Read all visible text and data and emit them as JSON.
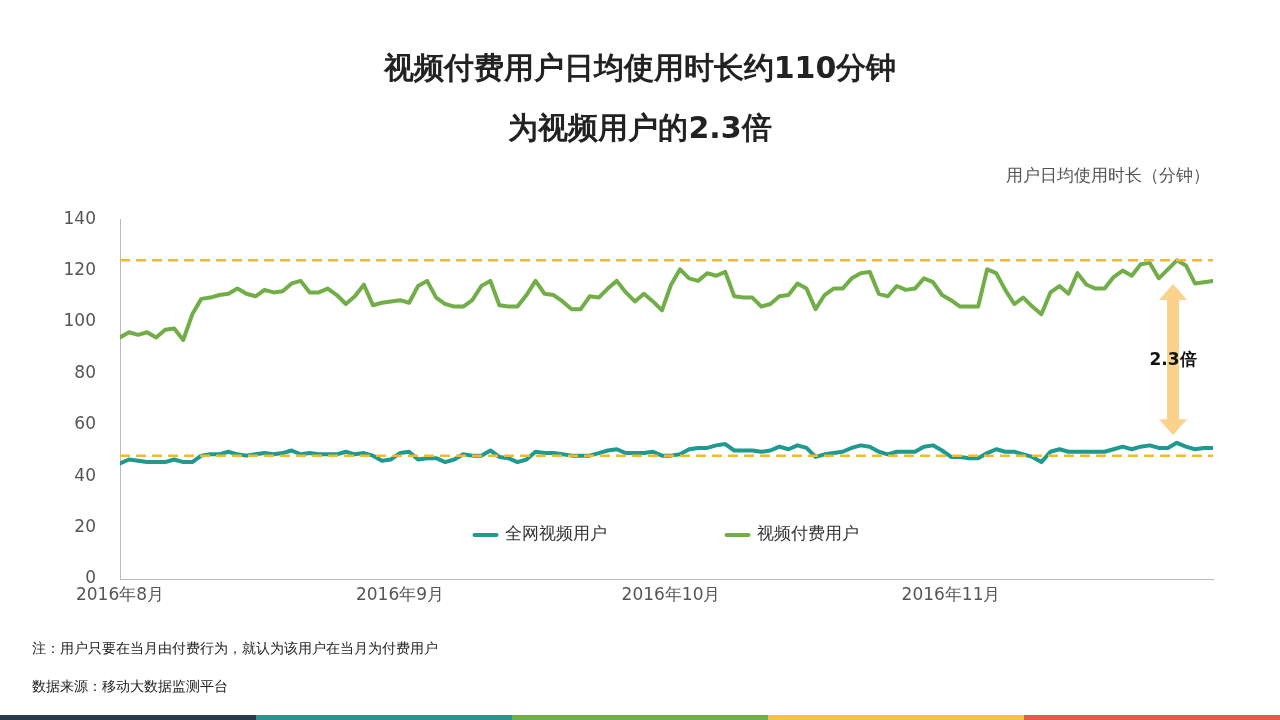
{
  "chart_data": {
    "type": "line",
    "title": "视频付费用户日均使用时长约110分钟",
    "subtitle": "为视频用户的2.3倍",
    "ylabel": "用户日均使用时长（分钟）",
    "x": [
      "2016-08-01",
      "2016-08-02",
      "2016-08-03",
      "2016-08-04",
      "2016-08-05",
      "2016-08-06",
      "2016-08-07",
      "2016-08-08",
      "2016-08-09",
      "2016-08-10",
      "2016-08-11",
      "2016-08-12",
      "2016-08-13",
      "2016-08-14",
      "2016-08-15",
      "2016-08-16",
      "2016-08-17",
      "2016-08-18",
      "2016-08-19",
      "2016-08-20",
      "2016-08-21",
      "2016-08-22",
      "2016-08-23",
      "2016-08-24",
      "2016-08-25",
      "2016-08-26",
      "2016-08-27",
      "2016-08-28",
      "2016-08-29",
      "2016-08-30",
      "2016-08-31",
      "2016-09-01",
      "2016-09-02",
      "2016-09-03",
      "2016-09-04",
      "2016-09-05",
      "2016-09-06",
      "2016-09-07",
      "2016-09-08",
      "2016-09-09",
      "2016-09-10",
      "2016-09-11",
      "2016-09-12",
      "2016-09-13",
      "2016-09-14",
      "2016-09-15",
      "2016-09-16",
      "2016-09-17",
      "2016-09-18",
      "2016-09-19",
      "2016-09-20",
      "2016-09-21",
      "2016-09-22",
      "2016-09-23",
      "2016-09-24",
      "2016-09-25",
      "2016-09-26",
      "2016-09-27",
      "2016-09-28",
      "2016-09-29",
      "2016-09-30",
      "2016-10-01",
      "2016-10-02",
      "2016-10-03",
      "2016-10-04",
      "2016-10-05",
      "2016-10-06",
      "2016-10-07",
      "2016-10-08",
      "2016-10-09",
      "2016-10-10",
      "2016-10-11",
      "2016-10-12",
      "2016-10-13",
      "2016-10-14",
      "2016-10-15",
      "2016-10-16",
      "2016-10-17",
      "2016-10-18",
      "2016-10-19",
      "2016-10-20",
      "2016-10-21",
      "2016-10-22",
      "2016-10-23",
      "2016-10-24",
      "2016-10-25",
      "2016-10-26",
      "2016-10-27",
      "2016-10-28",
      "2016-10-29",
      "2016-10-30",
      "2016-10-31",
      "2016-11-01",
      "2016-11-02",
      "2016-11-03",
      "2016-11-04",
      "2016-11-05",
      "2016-11-06",
      "2016-11-07",
      "2016-11-08",
      "2016-11-09",
      "2016-11-10",
      "2016-11-11",
      "2016-11-12",
      "2016-11-13",
      "2016-11-14",
      "2016-11-15",
      "2016-11-16",
      "2016-11-17",
      "2016-11-18",
      "2016-11-19",
      "2016-11-20",
      "2016-11-21",
      "2016-11-22",
      "2016-11-23",
      "2016-11-24",
      "2016-11-25",
      "2016-11-26",
      "2016-11-27",
      "2016-11-28",
      "2016-11-29",
      "2016-11-30"
    ],
    "series": [
      {
        "name": "全网视频用户",
        "color": "#1f9a8e",
        "values": [
          45,
          46.5,
          46,
          45.5,
          45.5,
          45.5,
          46.5,
          45.5,
          45.5,
          48,
          48.5,
          48.5,
          49.5,
          48.5,
          48,
          48.5,
          49,
          48.5,
          49,
          50,
          48.5,
          49,
          48.5,
          48.5,
          48.5,
          49.5,
          48.5,
          49,
          48,
          46,
          46.5,
          49,
          49.5,
          46.5,
          47,
          47,
          45.5,
          46.5,
          48.5,
          48,
          48,
          50,
          47.5,
          47,
          45.5,
          46.5,
          49.5,
          49,
          49,
          48.5,
          48,
          48,
          48,
          49,
          50,
          50.5,
          49,
          49,
          49,
          49.5,
          48,
          48,
          48.5,
          50.5,
          51,
          51,
          52,
          52.5,
          50,
          50,
          50,
          49.5,
          50,
          51.5,
          50.5,
          52,
          51,
          47.5,
          48.5,
          49,
          49.5,
          51,
          52,
          51.5,
          49.5,
          48.5,
          49.5,
          49.5,
          49.5,
          51.5,
          52,
          50,
          47.5,
          47.5,
          47,
          47,
          49,
          50.5,
          49.5,
          49.5,
          48.5,
          47.5,
          45.5,
          49.5,
          50.5,
          49.5,
          49.5,
          49.5,
          49.5,
          49.5,
          50.5,
          51.5,
          50.5,
          51.5,
          52,
          51,
          51,
          53,
          51.5,
          50.5,
          51,
          51
        ]
      },
      {
        "name": "视频付费用户",
        "color": "#72ae48",
        "values": [
          94,
          96,
          95,
          96,
          94,
          97,
          97.5,
          93,
          103,
          109,
          109.5,
          110.5,
          111,
          113,
          111,
          110,
          112.5,
          111.5,
          112,
          115,
          116,
          111.5,
          111.5,
          113,
          110.5,
          107,
          110,
          114.5,
          106.5,
          107.5,
          108,
          108.5,
          107.5,
          114,
          116,
          109.5,
          107,
          106,
          106,
          108.5,
          114,
          116,
          106.5,
          106,
          106,
          110.5,
          116,
          111,
          110.5,
          108,
          105,
          105,
          110,
          109.5,
          113,
          116,
          111.5,
          108,
          111,
          108,
          104.5,
          114.5,
          120.5,
          117,
          116,
          119,
          118,
          119.5,
          110,
          109.5,
          109.5,
          106,
          107,
          110,
          110.5,
          115,
          113,
          105,
          110.5,
          113,
          113,
          117,
          119,
          119.5,
          111,
          110,
          114,
          112.5,
          113,
          117,
          115.5,
          110.5,
          108.5,
          106,
          106,
          106,
          120.5,
          119,
          112.5,
          107,
          109.5,
          106,
          103,
          111.5,
          114,
          111,
          119,
          114.5,
          113,
          113,
          117.5,
          120,
          118,
          122.5,
          123,
          117,
          120.5,
          124,
          122,
          115,
          115.5,
          116
        ]
      }
    ],
    "xlim": [
      "2016-08-01",
      "2016-11-30"
    ],
    "xticks": [
      {
        "value": "2016-08-01",
        "label": "2016年8月"
      },
      {
        "value": "2016-09-01",
        "label": "2016年9月"
      },
      {
        "value": "2016-10-01",
        "label": "2016年10月"
      },
      {
        "value": "2016-11-01",
        "label": "2016年11月"
      }
    ],
    "ylim": [
      0,
      140
    ],
    "yticks": [
      0,
      20,
      40,
      60,
      80,
      100,
      120,
      140
    ],
    "ref_lines": [
      {
        "axis": "y",
        "value": 124,
        "color": "#f5b733",
        "line_style": "dashed"
      },
      {
        "axis": "y",
        "value": 48,
        "color": "#f5b733",
        "line_style": "dashed"
      }
    ],
    "annotations": [
      "2.3倍",
      "注：用户只要在当月由付费行为，就认为该用户在当月为付费用户",
      "数据来源：移动大数据监测平台"
    ],
    "grid": false,
    "legend": "bottom",
    "marker": "none",
    "line_style": "solid"
  }
}
